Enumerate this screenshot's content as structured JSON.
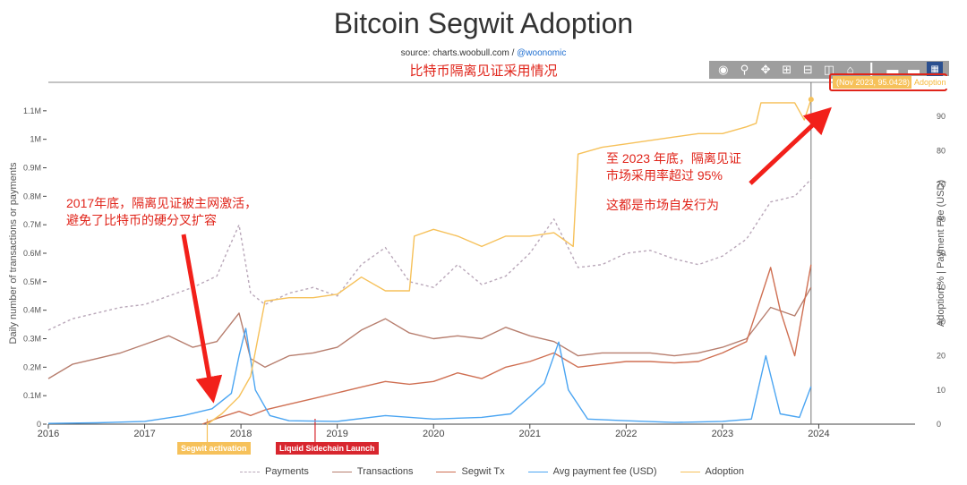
{
  "header": {
    "title": "Bitcoin Segwit Adoption",
    "source_prefix": "source: charts.woobull.com / ",
    "source_handle": "@woonomic",
    "cn_subtitle": "比特币隔离见证采用情况"
  },
  "toolbar": {
    "icons": [
      "camera-icon",
      "zoom-icon",
      "pan-icon",
      "zoom-in-icon",
      "zoom-out-icon",
      "autoscale-icon",
      "reset-axes-icon",
      "spike-lines-icon",
      "compare-hover-icon",
      "closest-hover-icon",
      "plotly-logo-icon"
    ]
  },
  "annotations": {
    "left_line1": "2017年底，隔离见证被主网激活，",
    "left_line2": "避免了比特币的硬分叉扩容",
    "right_line1": "至 2023 年底，隔离见证",
    "right_line2": "市场采用率超过 95%",
    "right_line3": "这都是市场自发行为",
    "arrow_color": "#f2201a"
  },
  "events": {
    "segwit": "Segwit activation",
    "liquid": "Liquid Sidechain Launch"
  },
  "tooltip": {
    "main": "(Nov 2023, 95.0428)",
    "side": "Adoption"
  },
  "chart_data": {
    "type": "line",
    "title": "Bitcoin Segwit Adoption",
    "xlabel": "",
    "ylabel": "Daily number of transactions or payments",
    "y2label": "Adoption % | Payment Fee (USD)",
    "xlim": [
      2016.0,
      2025.0
    ],
    "ylim": [
      0,
      1200000
    ],
    "y2lim": [
      0,
      100
    ],
    "xticks": [
      2016,
      2017,
      2018,
      2019,
      2020,
      2021,
      2022,
      2023,
      2024
    ],
    "xtick_labels": [
      "2016",
      "2017",
      "2018",
      "2019",
      "2020",
      "2021",
      "2022",
      "2023",
      "2024"
    ],
    "yticks": [
      0,
      100000,
      200000,
      300000,
      400000,
      500000,
      600000,
      700000,
      800000,
      900000,
      1000000,
      1100000
    ],
    "ytick_labels": [
      "0",
      "0.1M",
      "0.2M",
      "0.3M",
      "0.4M",
      "0.5M",
      "0.6M",
      "0.7M",
      "0.8M",
      "0.9M",
      "1M",
      "1.1M"
    ],
    "y2ticks": [
      0,
      10,
      20,
      30,
      40,
      50,
      60,
      70,
      80,
      90
    ],
    "y2tick_labels": [
      "0",
      "10",
      "20",
      "30",
      "40",
      "50",
      "60",
      "70",
      "80",
      "90"
    ],
    "grid": false,
    "legend_position": "bottom",
    "event_markers": [
      {
        "label": "Segwit activation",
        "x": 2017.65,
        "color": "#f6c15a"
      },
      {
        "label": "Liquid Sidechain Launch",
        "x": 2018.77,
        "color": "#d8262e"
      }
    ],
    "series": [
      {
        "name": "Payments",
        "axis": "y",
        "color": "#b9a7b9",
        "dash": "3,3",
        "x": [
          2016.0,
          2016.25,
          2016.5,
          2016.75,
          2017.0,
          2017.25,
          2017.5,
          2017.75,
          2017.85,
          2017.98,
          2018.1,
          2018.25,
          2018.5,
          2018.75,
          2019.0,
          2019.25,
          2019.5,
          2019.75,
          2020.0,
          2020.25,
          2020.5,
          2020.75,
          2021.0,
          2021.25,
          2021.5,
          2021.75,
          2022.0,
          2022.25,
          2022.5,
          2022.75,
          2023.0,
          2023.25,
          2023.5,
          2023.75,
          2023.92
        ],
        "y": [
          330000,
          370000,
          390000,
          410000,
          420000,
          450000,
          480000,
          520000,
          600000,
          700000,
          460000,
          420000,
          460000,
          480000,
          450000,
          560000,
          620000,
          500000,
          480000,
          560000,
          490000,
          520000,
          600000,
          720000,
          550000,
          560000,
          600000,
          610000,
          580000,
          560000,
          590000,
          650000,
          780000,
          800000,
          860000
        ]
      },
      {
        "name": "Transactions",
        "axis": "y",
        "color": "#b77e6e",
        "dash": "",
        "x": [
          2016.0,
          2016.25,
          2016.5,
          2016.75,
          2017.0,
          2017.25,
          2017.5,
          2017.75,
          2017.98,
          2018.1,
          2018.25,
          2018.5,
          2018.75,
          2019.0,
          2019.25,
          2019.5,
          2019.75,
          2020.0,
          2020.25,
          2020.5,
          2020.75,
          2021.0,
          2021.25,
          2021.5,
          2021.75,
          2022.0,
          2022.25,
          2022.5,
          2022.75,
          2023.0,
          2023.25,
          2023.5,
          2023.75,
          2023.92
        ],
        "y": [
          160000,
          210000,
          230000,
          250000,
          280000,
          310000,
          270000,
          290000,
          390000,
          230000,
          200000,
          240000,
          250000,
          270000,
          330000,
          370000,
          320000,
          300000,
          310000,
          300000,
          340000,
          310000,
          290000,
          240000,
          250000,
          250000,
          250000,
          240000,
          250000,
          270000,
          300000,
          410000,
          380000,
          480000
        ]
      },
      {
        "name": "Segwit Tx",
        "axis": "y",
        "color": "#cf6f52",
        "dash": "",
        "x": [
          2017.6,
          2017.75,
          2017.98,
          2018.1,
          2018.25,
          2018.5,
          2018.75,
          2019.0,
          2019.25,
          2019.5,
          2019.75,
          2020.0,
          2020.25,
          2020.5,
          2020.75,
          2021.0,
          2021.25,
          2021.5,
          2021.75,
          2022.0,
          2022.25,
          2022.5,
          2022.75,
          2023.0,
          2023.25,
          2023.5,
          2023.6,
          2023.75,
          2023.92
        ],
        "y": [
          0,
          20000,
          45000,
          30000,
          50000,
          70000,
          90000,
          110000,
          130000,
          150000,
          140000,
          150000,
          180000,
          160000,
          200000,
          220000,
          250000,
          200000,
          210000,
          220000,
          220000,
          215000,
          220000,
          250000,
          290000,
          550000,
          400000,
          240000,
          560000
        ]
      },
      {
        "name": "Avg payment fee (USD)",
        "axis": "y2",
        "color": "#4ba5f2",
        "dash": "",
        "x": [
          2016.0,
          2016.5,
          2017.0,
          2017.4,
          2017.7,
          2017.9,
          2017.98,
          2018.05,
          2018.15,
          2018.3,
          2018.5,
          2019.0,
          2019.5,
          2020.0,
          2020.5,
          2020.8,
          2021.0,
          2021.15,
          2021.3,
          2021.4,
          2021.6,
          2022.0,
          2022.5,
          2023.0,
          2023.3,
          2023.45,
          2023.6,
          2023.8,
          2023.92
        ],
        "y": [
          0.2,
          0.4,
          0.8,
          2.5,
          4.5,
          9.0,
          20.0,
          28.0,
          10.0,
          2.5,
          1.0,
          0.8,
          2.5,
          1.5,
          2.0,
          3.0,
          8.0,
          12.0,
          24.0,
          10.0,
          1.5,
          1.0,
          0.5,
          0.8,
          1.5,
          20.0,
          3.0,
          2.0,
          11.0
        ]
      },
      {
        "name": "Adoption",
        "axis": "y2",
        "color": "#f6c15a",
        "dash": "",
        "x": [
          2017.65,
          2017.8,
          2017.98,
          2018.1,
          2018.25,
          2018.5,
          2018.75,
          2019.0,
          2019.25,
          2019.5,
          2019.75,
          2019.8,
          2020.0,
          2020.25,
          2020.5,
          2020.75,
          2021.0,
          2021.25,
          2021.45,
          2021.5,
          2021.75,
          2022.0,
          2022.25,
          2022.5,
          2022.75,
          2023.0,
          2023.25,
          2023.35,
          2023.4,
          2023.6,
          2023.75,
          2023.85,
          2023.92
        ],
        "y": [
          0,
          3,
          8,
          14,
          36,
          37,
          37,
          38,
          43,
          39,
          39,
          55,
          57,
          55,
          52,
          55,
          55,
          56,
          52,
          79,
          81,
          82,
          83,
          84,
          85,
          85,
          87,
          88,
          94,
          94,
          94,
          89,
          95
        ]
      }
    ]
  }
}
